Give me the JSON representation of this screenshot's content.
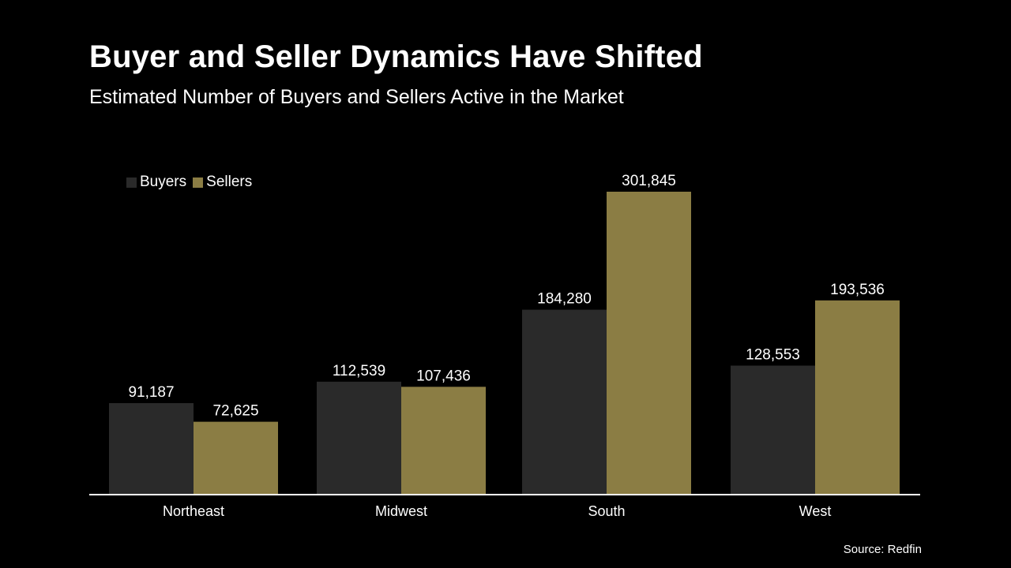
{
  "title": "Buyer and Seller Dynamics Have Shifted",
  "subtitle": "Estimated Number of Buyers and Sellers Active in the Market",
  "source": "Source: Redfin",
  "colors": {
    "background": "#000000",
    "buyers": "#2a2a2a",
    "sellers": "#8b7d44",
    "text": "#ffffff",
    "axis": "#ffffff"
  },
  "chart_data": {
    "type": "bar",
    "categories": [
      "Northeast",
      "Midwest",
      "South",
      "West"
    ],
    "series": [
      {
        "name": "Buyers",
        "values": [
          91187,
          112539,
          184280,
          128553
        ],
        "labels": [
          "91,187",
          "112,539",
          "184,280",
          "128,553"
        ]
      },
      {
        "name": "Sellers",
        "values": [
          72625,
          107436,
          301845,
          193536
        ],
        "labels": [
          "72,625",
          "107,436",
          "301,845",
          "193,536"
        ]
      }
    ],
    "ylim": [
      0,
      301845
    ],
    "grid": false,
    "legend_position": "top-left"
  }
}
